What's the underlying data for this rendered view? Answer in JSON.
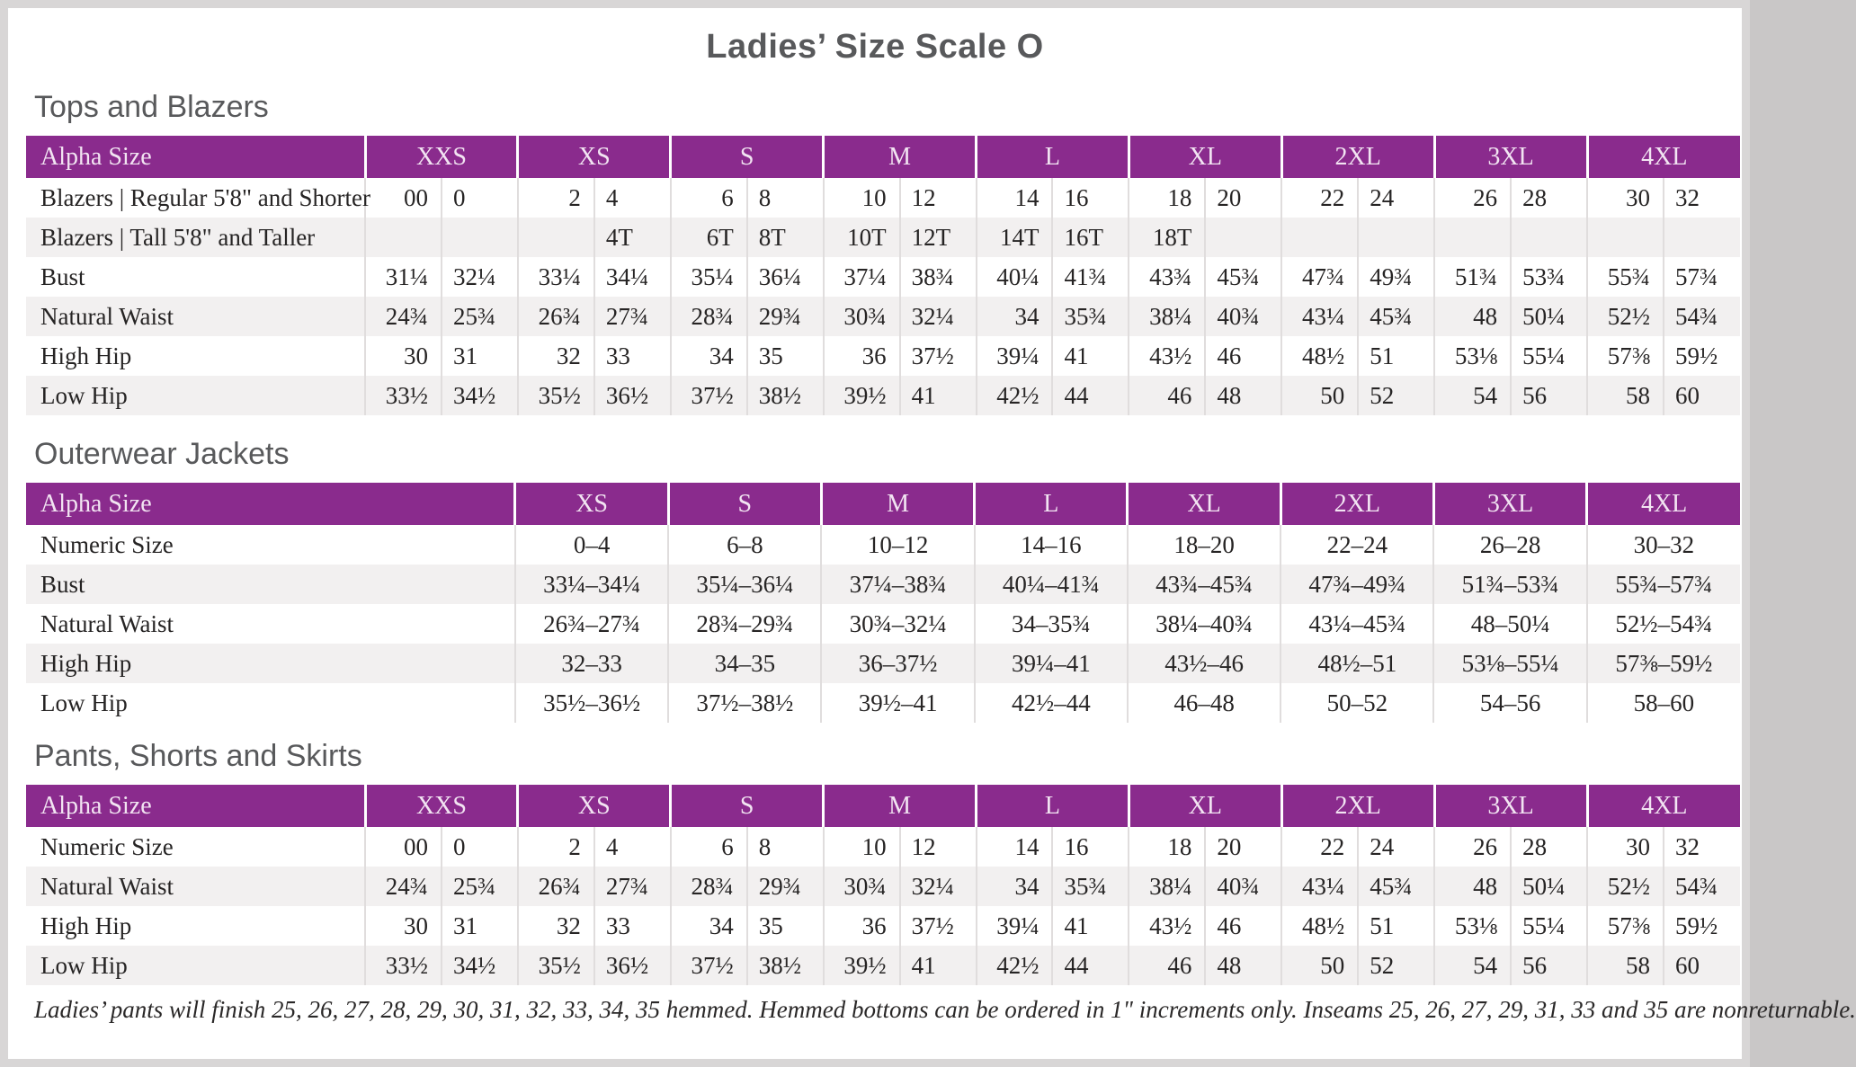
{
  "page": {
    "title": "Ladies’ Size Scale O"
  },
  "colors": {
    "header_purple": "#8a2b8d",
    "header_text": "#f2e4f2",
    "row_alt_gray": "#f2f0f0",
    "body_text": "#262424",
    "heading_gray": "#58595b",
    "page_frame_gray": "#d8d6d6"
  },
  "tables": {
    "tops": {
      "heading": "Tops and Blazers",
      "corner_label": "Alpha Size",
      "sizes": [
        "XXS",
        "XS",
        "S",
        "M",
        "L",
        "XL",
        "2XL",
        "3XL",
        "4XL"
      ],
      "rows": [
        {
          "label": "Blazers  |  Regular 5'8\" and Shorter",
          "values": [
            "00",
            "0",
            "2",
            "4",
            "6",
            "8",
            "10",
            "12",
            "14",
            "16",
            "18",
            "20",
            "22",
            "24",
            "26",
            "28",
            "30",
            "32"
          ]
        },
        {
          "label": "Blazers  |  Tall 5'8\" and Taller",
          "values": [
            "",
            "",
            "",
            "4T",
            "6T",
            "8T",
            "10T",
            "12T",
            "14T",
            "16T",
            "18T",
            "",
            "",
            "",
            "",
            "",
            "",
            ""
          ]
        },
        {
          "label": "Bust",
          "values": [
            "31¼",
            "32¼",
            "33¼",
            "34¼",
            "35¼",
            "36¼",
            "37¼",
            "38¾",
            "40¼",
            "41¾",
            "43¾",
            "45¾",
            "47¾",
            "49¾",
            "51¾",
            "53¾",
            "55¾",
            "57¾"
          ]
        },
        {
          "label": "Natural Waist",
          "values": [
            "24¾",
            "25¾",
            "26¾",
            "27¾",
            "28¾",
            "29¾",
            "30¾",
            "32¼",
            "34",
            "35¾",
            "38¼",
            "40¾",
            "43¼",
            "45¾",
            "48",
            "50¼",
            "52½",
            "54¾"
          ]
        },
        {
          "label": "High Hip",
          "values": [
            "30",
            "31",
            "32",
            "33",
            "34",
            "35",
            "36",
            "37½",
            "39¼",
            "41",
            "43½",
            "46",
            "48½",
            "51",
            "53⅛",
            "55¼",
            "57⅜",
            "59½"
          ]
        },
        {
          "label": "Low Hip",
          "values": [
            "33½",
            "34½",
            "35½",
            "36½",
            "37½",
            "38½",
            "39½",
            "41",
            "42½",
            "44",
            "46",
            "48",
            "50",
            "52",
            "54",
            "56",
            "58",
            "60"
          ]
        }
      ]
    },
    "outerwear": {
      "heading": "Outerwear Jackets",
      "corner_label": "Alpha Size",
      "sizes": [
        "XS",
        "S",
        "M",
        "L",
        "XL",
        "2XL",
        "3XL",
        "4XL"
      ],
      "rows": [
        {
          "label": "Numeric Size",
          "values": [
            "0–4",
            "6–8",
            "10–12",
            "14–16",
            "18–20",
            "22–24",
            "26–28",
            "30–32"
          ]
        },
        {
          "label": "Bust",
          "values": [
            "33¼–34¼",
            "35¼–36¼",
            "37¼–38¾",
            "40¼–41¾",
            "43¾–45¾",
            "47¾–49¾",
            "51¾–53¾",
            "55¾–57¾"
          ]
        },
        {
          "label": "Natural Waist",
          "values": [
            "26¾–27¾",
            "28¾–29¾",
            "30¾–32¼",
            "34–35¾",
            "38¼–40¾",
            "43¼–45¾",
            "48–50¼",
            "52½–54¾"
          ]
        },
        {
          "label": "High Hip",
          "values": [
            "32–33",
            "34–35",
            "36–37½",
            "39¼–41",
            "43½–46",
            "48½–51",
            "53⅛–55¼",
            "57⅜–59½"
          ]
        },
        {
          "label": "Low Hip",
          "values": [
            "35½–36½",
            "37½–38½",
            "39½–41",
            "42½–44",
            "46–48",
            "50–52",
            "54–56",
            "58–60"
          ]
        }
      ]
    },
    "pants": {
      "heading": "Pants, Shorts and Skirts",
      "corner_label": "Alpha Size",
      "sizes": [
        "XXS",
        "XS",
        "S",
        "M",
        "L",
        "XL",
        "2XL",
        "3XL",
        "4XL"
      ],
      "rows": [
        {
          "label": "Numeric Size",
          "values": [
            "00",
            "0",
            "2",
            "4",
            "6",
            "8",
            "10",
            "12",
            "14",
            "16",
            "18",
            "20",
            "22",
            "24",
            "26",
            "28",
            "30",
            "32"
          ]
        },
        {
          "label": "Natural Waist",
          "values": [
            "24¾",
            "25¾",
            "26¾",
            "27¾",
            "28¾",
            "29¾",
            "30¾",
            "32¼",
            "34",
            "35¾",
            "38¼",
            "40¾",
            "43¼",
            "45¾",
            "48",
            "50¼",
            "52½",
            "54¾"
          ]
        },
        {
          "label": "High Hip",
          "values": [
            "30",
            "31",
            "32",
            "33",
            "34",
            "35",
            "36",
            "37½",
            "39¼",
            "41",
            "43½",
            "46",
            "48½",
            "51",
            "53⅛",
            "55¼",
            "57⅜",
            "59½"
          ]
        },
        {
          "label": "Low Hip",
          "values": [
            "33½",
            "34½",
            "35½",
            "36½",
            "37½",
            "38½",
            "39½",
            "41",
            "42½",
            "44",
            "46",
            "48",
            "50",
            "52",
            "54",
            "56",
            "58",
            "60"
          ]
        }
      ]
    }
  },
  "footnote": "Ladies’ pants will finish 25, 26, 27, 28, 29, 30, 31, 32, 33, 34, 35 hemmed. Hemmed bottoms can be ordered in 1\" increments only. Inseams 25, 26, 27, 29, 31, 33 and 35 are nonreturnable."
}
